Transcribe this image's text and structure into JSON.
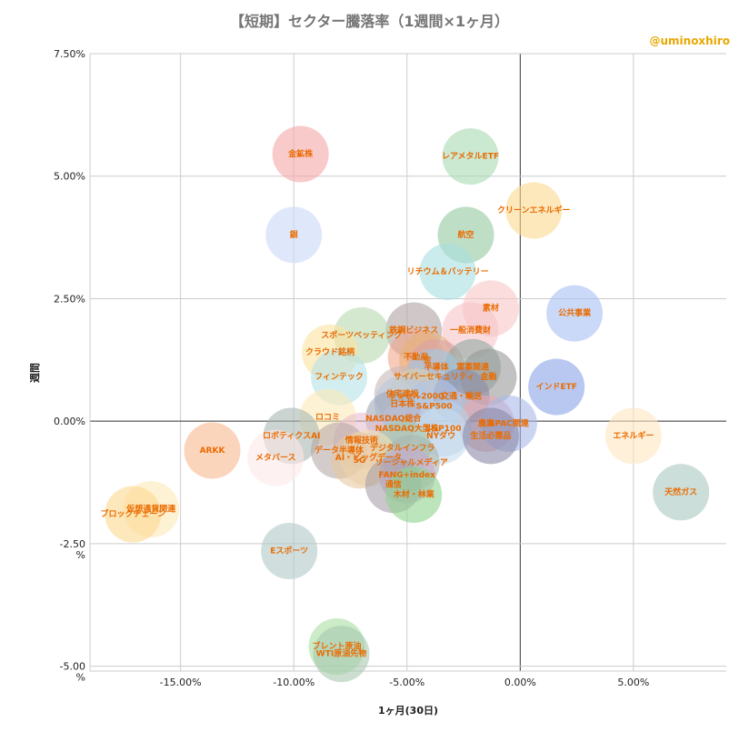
{
  "title": "【短期】セクター騰落率（1週間×1ヶ月）",
  "author": "@uminoxhiro",
  "chart_data": {
    "type": "scatter",
    "xlabel": "1ヶ月(30日)",
    "ylabel": "週間",
    "xlim": [
      -19.0,
      9.1
    ],
    "ylim": [
      -5.1,
      7.5
    ],
    "x_ticks": [
      -15,
      -10,
      -5,
      0,
      5
    ],
    "x_tick_labels": [
      "-15.00%",
      "-10.00%",
      "-5.00%",
      "0.00%",
      "5.00%"
    ],
    "y_ticks": [
      7.5,
      5,
      2.5,
      0,
      -2.5,
      -5
    ],
    "y_tick_labels": [
      "7.50%",
      "5.00%",
      "2.50%",
      "0.00%",
      "-2.50 %",
      "-5.00 %"
    ],
    "grid": true,
    "legend": "none",
    "points": [
      {
        "label": "金鉱株",
        "x": -9.7,
        "y": 5.45,
        "color": "#f4a6a6"
      },
      {
        "label": "レアメタルETF",
        "x": -2.2,
        "y": 5.4,
        "color": "#a8d8b0"
      },
      {
        "label": "クリーンエネルギー",
        "x": 0.6,
        "y": 4.3,
        "color": "#fbd98f"
      },
      {
        "label": "銀",
        "x": -10.0,
        "y": 3.8,
        "color": "#c9d9f8"
      },
      {
        "label": "航空",
        "x": -2.4,
        "y": 3.8,
        "color": "#93c9a0"
      },
      {
        "label": "リチウム＆バッテリー",
        "x": -3.2,
        "y": 3.05,
        "color": "#a9dfe0"
      },
      {
        "label": "素材",
        "x": -1.3,
        "y": 2.3,
        "color": "#f8c6c6"
      },
      {
        "label": "公共事業",
        "x": 2.4,
        "y": 2.2,
        "color": "#a7bff2"
      },
      {
        "label": "鉄鋼ビジネス",
        "x": -4.7,
        "y": 1.85,
        "color": "#b0a3a3"
      },
      {
        "label": "一般消費財",
        "x": -2.2,
        "y": 1.85,
        "color": "#f7c5c8"
      },
      {
        "label": "スポーツベッティング",
        "x": -7.0,
        "y": 1.75,
        "color": "#b8d8b0"
      },
      {
        "label": "クラウド銘柄",
        "x": -8.4,
        "y": 1.4,
        "color": "#fbe2a0"
      },
      {
        "label": "不動産",
        "x": -4.6,
        "y": 1.3,
        "color": "#f2a68a"
      },
      {
        "label": "金",
        "x": -4.1,
        "y": 1.25,
        "color": "#e8b07a"
      },
      {
        "label": "半導体",
        "x": -3.7,
        "y": 1.1,
        "color": "#d9a3a8"
      },
      {
        "label": "軍事関連",
        "x": -2.1,
        "y": 1.1,
        "color": "#8fa8a0"
      },
      {
        "label": "フィンテック",
        "x": -8.0,
        "y": 0.9,
        "color": "#b5e3e6"
      },
      {
        "label": "サイバーセキュリティ",
        "x": -3.8,
        "y": 0.9,
        "color": "#9cc9e6"
      },
      {
        "label": "金融",
        "x": -1.4,
        "y": 0.9,
        "color": "#9a9a9a"
      },
      {
        "label": "インドETF",
        "x": 1.6,
        "y": 0.7,
        "color": "#8aa4e6"
      },
      {
        "label": "住宅建設",
        "x": -5.2,
        "y": 0.55,
        "color": "#c9b8b8"
      },
      {
        "label": "ラッセル2000",
        "x": -4.6,
        "y": 0.5,
        "color": "#d6d0b0"
      },
      {
        "label": "交通・輸送",
        "x": -2.6,
        "y": 0.5,
        "color": "#8c8ca8"
      },
      {
        "label": "日本株",
        "x": -5.2,
        "y": 0.35,
        "color": "#b8c9e0"
      },
      {
        "label": "S&P500",
        "x": -3.8,
        "y": 0.3,
        "color": "#b0c4e8"
      },
      {
        "label": "NASDAQ総合",
        "x": -5.6,
        "y": 0.05,
        "color": "#9fa8b8"
      },
      {
        "label": "ロコミ",
        "x": -8.5,
        "y": 0.08,
        "color": "#fdeab8"
      },
      {
        "label": "農業",
        "x": -1.5,
        "y": -0.05,
        "color": "#e8a8b0"
      },
      {
        "label": "SPAC関連",
        "x": -0.5,
        "y": -0.05,
        "color": "#a8b8e8"
      },
      {
        "label": "NASDAQ大型株",
        "x": -5.0,
        "y": -0.15,
        "color": "#c0c0d8"
      },
      {
        "label": "S&P100",
        "x": -3.4,
        "y": -0.15,
        "color": "#b8d0e8"
      },
      {
        "label": "NYダウ",
        "x": -3.5,
        "y": -0.3,
        "color": "#c8dcef"
      },
      {
        "label": "生活必需品",
        "x": -1.3,
        "y": -0.3,
        "color": "#8a8aa8"
      },
      {
        "label": "ロボティクスAI",
        "x": -10.1,
        "y": -0.3,
        "color": "#a8b8b0"
      },
      {
        "label": "エネルギー",
        "x": 5.0,
        "y": -0.3,
        "color": "#fde6c0"
      },
      {
        "label": "情報技術",
        "x": -7.0,
        "y": -0.4,
        "color": "#e8c0d0"
      },
      {
        "label": "デジタルインフラ",
        "x": -5.2,
        "y": -0.55,
        "color": "#a8c8a8"
      },
      {
        "label": "データ半導体",
        "x": -8.0,
        "y": -0.6,
        "color": "#b8a8a8"
      },
      {
        "label": "ARKK",
        "x": -13.6,
        "y": -0.6,
        "color": "#f8b890"
      },
      {
        "label": "メタバース",
        "x": -10.8,
        "y": -0.75,
        "color": "#fde8e8"
      },
      {
        "label": "AI・ビッグデータ",
        "x": -6.7,
        "y": -0.75,
        "color": "#f0e0b8"
      },
      {
        "label": "5G",
        "x": -7.1,
        "y": -0.8,
        "color": "#e8c8a0"
      },
      {
        "label": "ソーシャルメディア",
        "x": -4.8,
        "y": -0.85,
        "color": "#a8b8b0"
      },
      {
        "label": "FANG+index",
        "x": -5.0,
        "y": -1.1,
        "color": "#c8a8d0"
      },
      {
        "label": "通信",
        "x": -5.6,
        "y": -1.3,
        "color": "#a8a0a8"
      },
      {
        "label": "木材・林業",
        "x": -4.7,
        "y": -1.5,
        "color": "#8fd48f"
      },
      {
        "label": "天然ガス",
        "x": 7.1,
        "y": -1.45,
        "color": "#a8c8c0"
      },
      {
        "label": "仮想通貨関連",
        "x": -16.3,
        "y": -1.8,
        "color": "#fdeab8"
      },
      {
        "label": "ブロックチェーン",
        "x": -17.1,
        "y": -1.9,
        "color": "#fbd98f"
      },
      {
        "label": "Eスポーツ",
        "x": -10.2,
        "y": -2.65,
        "color": "#b0c8c8"
      },
      {
        "label": "ブレント原油",
        "x": -8.1,
        "y": -4.6,
        "color": "#a8e0a0"
      },
      {
        "label": "WTI原油先物",
        "x": -7.9,
        "y": -4.75,
        "color": "#a8c8b0"
      }
    ]
  }
}
